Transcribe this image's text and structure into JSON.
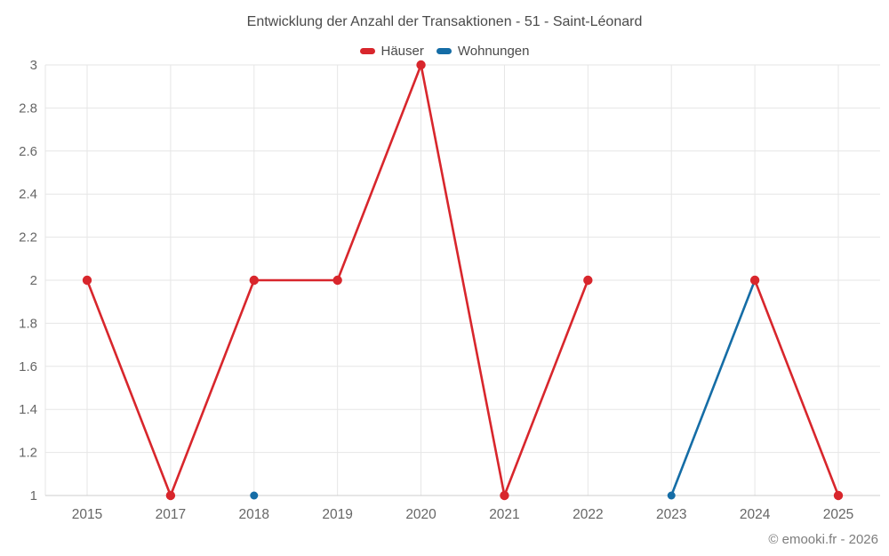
{
  "title": "Entwicklung der Anzahl der Transaktionen - 51 - Saint-Léonard",
  "copyright": "© emooki.fr - 2026",
  "colors": {
    "haeuser": "#d8262c",
    "wohnungen": "#156da6",
    "grid": "#e6e6e6",
    "axis_line": "#cccccc",
    "tick_label": "#666666",
    "title_text": "#4a4a4a"
  },
  "chart_data": {
    "type": "line",
    "title": "Entwicklung der Anzahl der Transaktionen - 51 - Saint-Léonard",
    "categories": [
      "2015",
      "2017",
      "2018",
      "2019",
      "2020",
      "2021",
      "2022",
      "2023",
      "2024",
      "2025"
    ],
    "series": [
      {
        "name": "Häuser",
        "color": "#d8262c",
        "marker_radius": 5.2,
        "values": [
          2,
          1,
          2,
          2,
          3,
          1,
          2,
          null,
          2,
          1
        ]
      },
      {
        "name": "Wohnungen",
        "color": "#156da6",
        "marker_radius": 4.5,
        "values": [
          null,
          null,
          1,
          null,
          null,
          null,
          null,
          1,
          2,
          null
        ]
      }
    ],
    "xlabel": "",
    "ylabel": "",
    "ylim": [
      1,
      3
    ],
    "ytick_step": 0.2,
    "ytick_labels": [
      "1",
      "1.2",
      "1.4",
      "1.6",
      "1.8",
      "2",
      "2.2",
      "2.4",
      "2.6",
      "2.8",
      "3"
    ],
    "grid": true,
    "legend_position": "top"
  }
}
